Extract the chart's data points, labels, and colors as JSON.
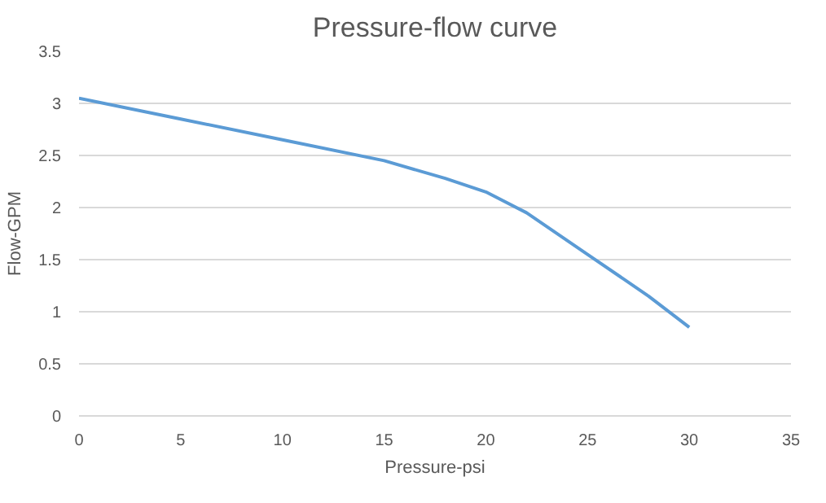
{
  "chart_data": {
    "type": "line",
    "title": "Pressure-flow curve",
    "xlabel": "Pressure-psi",
    "ylabel": "Flow-GPM",
    "x": [
      0,
      5,
      10,
      15,
      18,
      20,
      22,
      25,
      28,
      30
    ],
    "series": [
      {
        "color": "#5b9bd5",
        "values": [
          3.05,
          2.85,
          2.65,
          2.45,
          2.28,
          2.15,
          1.95,
          1.55,
          1.15,
          0.85
        ]
      }
    ],
    "xlim": [
      0,
      35
    ],
    "xticks": [
      0,
      5,
      10,
      15,
      20,
      25,
      30,
      35
    ],
    "ylim": [
      0,
      3.5
    ],
    "yticks": [
      0,
      0.5,
      1,
      1.5,
      2,
      2.5,
      3,
      3.5
    ],
    "grid": "y",
    "marker": "none",
    "line_style": "solid"
  }
}
